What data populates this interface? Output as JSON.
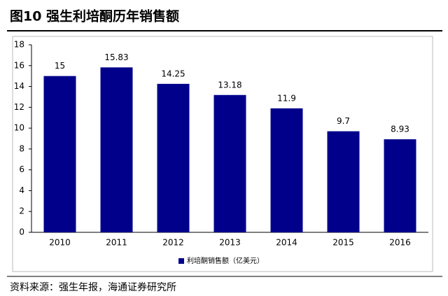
{
  "chart_data": {
    "type": "bar",
    "title": "图10 强生利培酮历年销售额",
    "categories": [
      "2010",
      "2011",
      "2012",
      "2013",
      "2014",
      "2015",
      "2016"
    ],
    "series": [
      {
        "name": "利培酮销售额（亿美元）",
        "color": "#00008b",
        "values": [
          15,
          15.83,
          14.25,
          13.18,
          11.9,
          9.7,
          8.93
        ]
      }
    ],
    "ylim": [
      0,
      18
    ],
    "yticks": [
      0,
      2,
      4,
      6,
      8,
      10,
      12,
      14,
      16,
      18
    ],
    "grid": false,
    "legend": "bottom",
    "source": "资料来源：强生年报，海通证券研究所"
  }
}
